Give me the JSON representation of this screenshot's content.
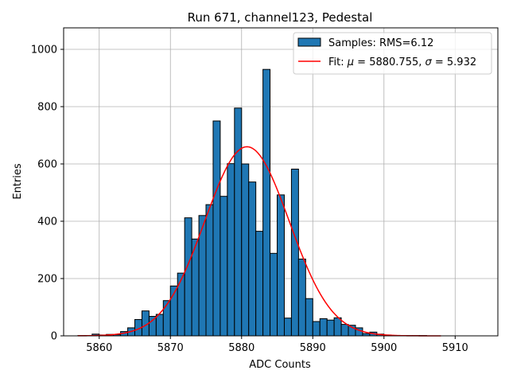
{
  "chart_data": {
    "type": "bar",
    "title": "Run 671, channel123, Pedestal",
    "xlabel": "ADC Counts",
    "ylabel": "Entries",
    "xlim": [
      5855,
      5916
    ],
    "ylim": [
      0,
      1075
    ],
    "xticks": [
      5860,
      5870,
      5880,
      5890,
      5900,
      5910
    ],
    "yticks": [
      0,
      200,
      400,
      600,
      800,
      1000
    ],
    "grid": true,
    "legend_placement": "top-right",
    "colors": {
      "bars": "#1f77b4",
      "bar_edge": "#000000",
      "fit": "#ff0000",
      "grid": "#b0b0b0"
    },
    "histogram": {
      "name": "Samples: RMS=6.12",
      "bin_start": 5857.0,
      "bin_width": 1.0,
      "counts": [
        1,
        1,
        6,
        3,
        5,
        4,
        15,
        28,
        57,
        87,
        68,
        75,
        123,
        174,
        219,
        412,
        338,
        420,
        458,
        750,
        487,
        601,
        795,
        600,
        537,
        365,
        930,
        288,
        492,
        62,
        582,
        268,
        130,
        50,
        60,
        55,
        63,
        40,
        37,
        28,
        8,
        13,
        6,
        3,
        1,
        1,
        1,
        1,
        1,
        0,
        0,
        0,
        0,
        0,
        0,
        0
      ]
    },
    "fit": {
      "name": "Fit: μ = 5880.755, σ = 5.932",
      "legend_prefix": "Fit: ",
      "mu_symbol": "μ",
      "mu_text": " = 5880.755, ",
      "sigma_symbol": "σ",
      "sigma_text": " = 5.932",
      "mu": 5880.755,
      "sigma": 5.932,
      "amplitude": 660,
      "x_range": [
        5857,
        5908
      ]
    }
  }
}
